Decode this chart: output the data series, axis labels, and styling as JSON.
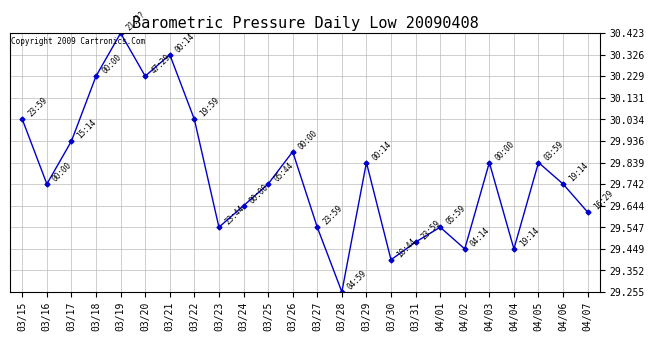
{
  "title": "Barometric Pressure Daily Low 20090408",
  "copyright": "Copyright 2009 Cartronics.Com",
  "x_labels": [
    "03/15",
    "03/16",
    "03/17",
    "03/18",
    "03/19",
    "03/20",
    "03/21",
    "03/22",
    "03/23",
    "03/24",
    "03/25",
    "03/26",
    "03/27",
    "03/28",
    "03/29",
    "03/30",
    "03/31",
    "04/01",
    "04/02",
    "04/03",
    "04/04",
    "04/05",
    "04/06",
    "04/07"
  ],
  "y_values": [
    30.034,
    29.742,
    29.936,
    30.229,
    30.423,
    30.229,
    30.326,
    30.034,
    29.547,
    29.644,
    29.742,
    29.888,
    29.547,
    29.255,
    29.839,
    29.4,
    29.48,
    29.547,
    29.449,
    29.839,
    29.449,
    29.839,
    29.742,
    29.615
  ],
  "point_labels": [
    "23:59",
    "00:00",
    "15:14",
    "00:00",
    "21:??",
    "47:29",
    "00:14",
    "19:59",
    "23:44",
    "00:00",
    "05:44",
    "00:00",
    "23:59",
    "04:59",
    "00:14",
    "18:44",
    "23:59",
    "05:59",
    "04:14",
    "00:00",
    "19:14",
    "03:59",
    "19:14",
    "16:29"
  ],
  "ylim_min": 29.255,
  "ylim_max": 30.423,
  "y_ticks": [
    29.255,
    29.352,
    29.449,
    29.547,
    29.644,
    29.742,
    29.839,
    29.936,
    30.034,
    30.131,
    30.229,
    30.326,
    30.423
  ],
  "line_color": "#0000cc",
  "marker_color": "#0000cc",
  "bg_color": "#ffffff",
  "grid_color": "#bbbbbb",
  "title_fontsize": 11,
  "tick_fontsize": 7,
  "label_fontsize": 6
}
